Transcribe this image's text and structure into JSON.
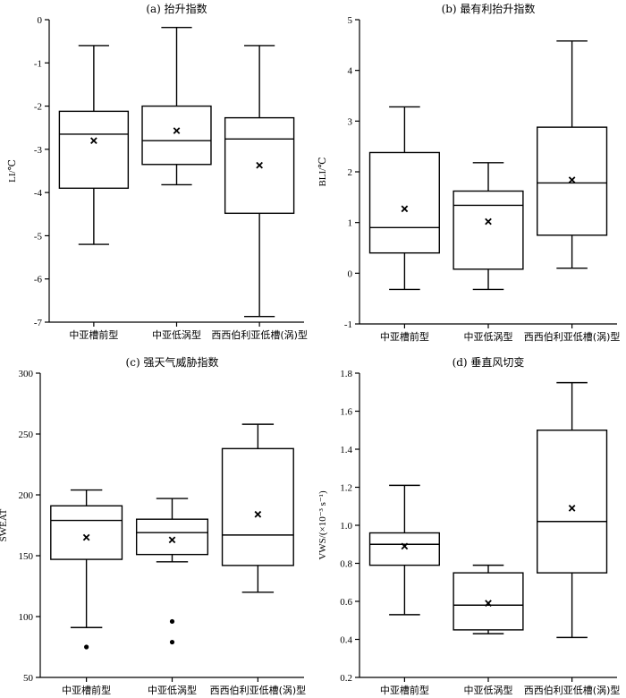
{
  "chart_data": [
    {
      "type": "box",
      "title": "(a) 抬升指数",
      "ylabel": "LI/℃",
      "ylim": [
        -7,
        0
      ],
      "yticks": [
        0,
        -1,
        -2,
        -3,
        -4,
        -5,
        -6,
        -7
      ],
      "ytick_labels": [
        "0",
        "-1",
        "-2",
        "-3",
        "-4",
        "-5",
        "-6",
        "-7"
      ],
      "categories": [
        "中亚槽前型",
        "中亚低涡型",
        "西西伯利亚低槽(涡)型"
      ],
      "boxes": [
        {
          "whisker_low": -5.2,
          "q1": -3.9,
          "median": -2.65,
          "q3": -2.12,
          "whisker_high": -0.6,
          "mean": -2.8,
          "outliers": []
        },
        {
          "whisker_low": -3.82,
          "q1": -3.35,
          "median": -2.8,
          "q3": -2.0,
          "whisker_high": -0.18,
          "mean": -2.57,
          "outliers": []
        },
        {
          "whisker_low": -6.87,
          "q1": -4.48,
          "median": -2.76,
          "q3": -2.27,
          "whisker_high": -0.6,
          "mean": -3.37,
          "outliers": []
        }
      ]
    },
    {
      "type": "box",
      "title": "(b) 最有利抬升指数",
      "ylabel": "BLI/℃",
      "ylim": [
        -1,
        5
      ],
      "yticks": [
        5,
        4,
        3,
        2,
        1,
        0,
        -1
      ],
      "ytick_labels": [
        "5",
        "4",
        "3",
        "2",
        "1",
        "0",
        "-1"
      ],
      "categories": [
        "中亚槽前型",
        "中亚低涡型",
        "西西伯利亚低槽(涡)型"
      ],
      "boxes": [
        {
          "whisker_low": -0.32,
          "q1": 0.4,
          "median": 0.9,
          "q3": 2.38,
          "whisker_high": 3.28,
          "mean": 1.27,
          "outliers": []
        },
        {
          "whisker_low": -0.32,
          "q1": 0.08,
          "median": 1.34,
          "q3": 1.62,
          "whisker_high": 2.18,
          "mean": 1.02,
          "outliers": []
        },
        {
          "whisker_low": 0.1,
          "q1": 0.75,
          "median": 1.78,
          "q3": 2.88,
          "whisker_high": 4.58,
          "mean": 1.84,
          "outliers": []
        }
      ]
    },
    {
      "type": "box",
      "title": "(c) 强天气威胁指数",
      "ylabel": "SWEAT",
      "ylim": [
        50,
        300
      ],
      "yticks": [
        300,
        250,
        200,
        150,
        100,
        50
      ],
      "ytick_labels": [
        "300",
        "250",
        "200",
        "150",
        "100",
        "50"
      ],
      "categories": [
        "中亚槽前型",
        "中亚低涡型",
        "西西伯利亚低槽(涡)型"
      ],
      "boxes": [
        {
          "whisker_low": 91,
          "q1": 147,
          "median": 179,
          "q3": 191,
          "whisker_high": 204,
          "mean": 165,
          "outliers": [
            75
          ]
        },
        {
          "whisker_low": 145,
          "q1": 151,
          "median": 169,
          "q3": 180,
          "whisker_high": 197,
          "mean": 163,
          "outliers": [
            96,
            79
          ]
        },
        {
          "whisker_low": 120,
          "q1": 142,
          "median": 167,
          "q3": 238,
          "whisker_high": 258,
          "mean": 184,
          "outliers": []
        }
      ]
    },
    {
      "type": "box",
      "title": "(d) 垂直风切变",
      "ylabel": "VWS/(×10⁻³ s⁻¹)",
      "ylim": [
        0.2,
        1.8
      ],
      "yticks": [
        1.8,
        1.6,
        1.4,
        1.2,
        1.0,
        0.8,
        0.6,
        0.4,
        0.2
      ],
      "ytick_labels": [
        "1.8",
        "1.6",
        "1.4",
        "1.2",
        "1.0",
        "0.8",
        "0.6",
        "0.4",
        "0.2"
      ],
      "categories": [
        "中亚槽前型",
        "中亚低涡型",
        "西西伯利亚低槽(涡)型"
      ],
      "boxes": [
        {
          "whisker_low": 0.53,
          "q1": 0.79,
          "median": 0.9,
          "q3": 0.96,
          "whisker_high": 1.21,
          "mean": 0.89,
          "outliers": []
        },
        {
          "whisker_low": 0.43,
          "q1": 0.45,
          "median": 0.58,
          "q3": 0.75,
          "whisker_high": 0.79,
          "mean": 0.59,
          "outliers": []
        },
        {
          "whisker_low": 0.41,
          "q1": 0.75,
          "median": 1.02,
          "q3": 1.5,
          "whisker_high": 1.75,
          "mean": 1.09,
          "outliers": []
        }
      ]
    }
  ]
}
